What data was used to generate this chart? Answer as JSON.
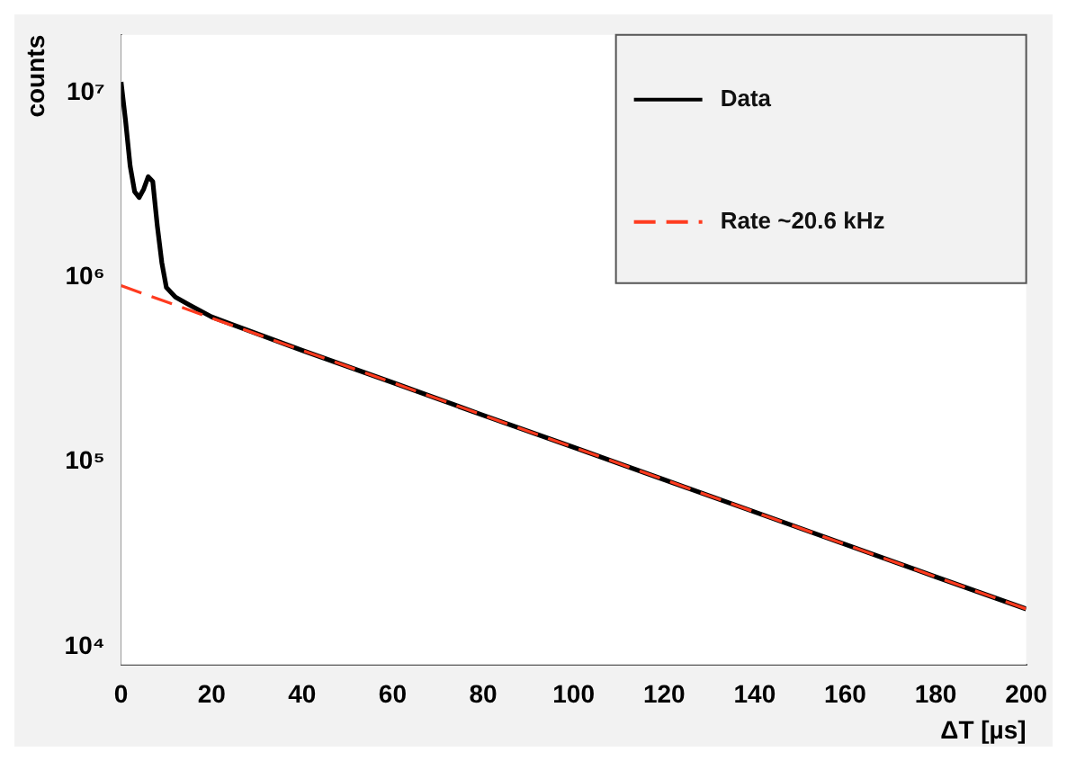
{
  "chart_data": {
    "type": "line",
    "xlabel": "ΔT [µs]",
    "ylabel": "counts",
    "log": "y",
    "xlim": [
      0,
      200
    ],
    "xticks": [
      0,
      20,
      40,
      60,
      80,
      100,
      120,
      140,
      160,
      180,
      200
    ],
    "ylim": [
      8000,
      20500000
    ],
    "yticks": [
      {
        "value": 10000,
        "label": "10⁴"
      },
      {
        "value": 100000,
        "label": "10⁵"
      },
      {
        "value": 1000000,
        "label": "10⁶"
      },
      {
        "value": 10000000,
        "label": "10⁷"
      }
    ],
    "grid": false,
    "legend": "top right",
    "marker": "none",
    "series": [
      {
        "name": "Data",
        "color": "#000000",
        "line_style": "solid",
        "x": [
          0,
          1,
          2,
          3,
          4,
          5,
          6,
          7,
          8,
          9,
          10,
          12,
          15,
          20,
          40,
          60,
          80,
          100,
          120,
          140,
          160,
          180,
          200
        ],
        "values": [
          11400000,
          7000000,
          4000000,
          2900000,
          2700000,
          3000000,
          3500000,
          3300000,
          1900000,
          1200000,
          880000,
          780000,
          710000,
          610000,
          402000,
          269000,
          179000,
          120000,
          80200,
          53600,
          35800,
          23900,
          16000
        ]
      },
      {
        "name": "Rate ~20.6 kHz",
        "color": "#ff3b1f",
        "line_style": "dashed",
        "x": [
          0,
          10,
          20,
          40,
          60,
          80,
          100,
          120,
          140,
          160,
          180,
          200
        ],
        "values": [
          900000,
          736000,
          601000,
          402000,
          269000,
          179000,
          120000,
          80200,
          53600,
          35800,
          23900,
          16000
        ]
      }
    ]
  }
}
